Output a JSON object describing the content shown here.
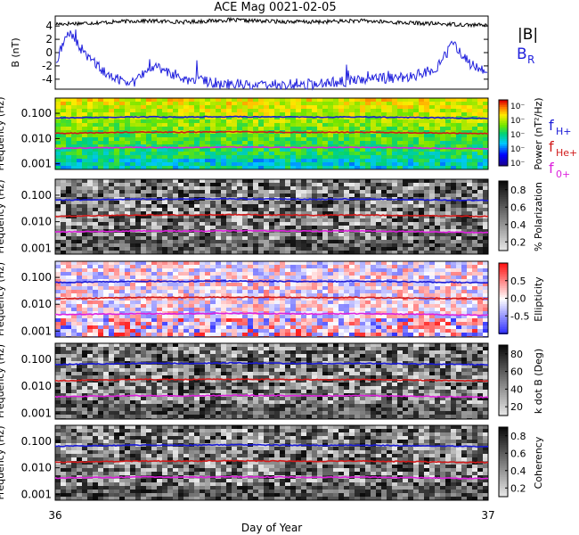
{
  "title": "ACE Mag 0021-02-05",
  "chart_data": [
    {
      "type": "line",
      "ylabel": "B (nT)",
      "ylim": [
        -5.5,
        5.5
      ],
      "yticks": [
        "4",
        "2",
        "0",
        "-2",
        "-4"
      ],
      "yticks_values": [
        4,
        2,
        0,
        -2,
        -4
      ],
      "legend": [
        {
          "label": "|B|",
          "color": "#000000"
        },
        {
          "label": "B",
          "sub": "R",
          "color": "#2222dd"
        }
      ],
      "series": [
        {
          "name": "|B|",
          "color": "#000000",
          "x": [
            36.0,
            36.1,
            36.2,
            36.3,
            36.4,
            36.5,
            36.6,
            36.7,
            36.8,
            36.9,
            37.0
          ],
          "values": [
            4.3,
            4.5,
            4.8,
            4.6,
            4.9,
            4.7,
            4.6,
            4.8,
            4.5,
            4.3,
            4.1
          ]
        },
        {
          "name": "B_R",
          "color": "#2222dd",
          "x": [
            36.0,
            36.03,
            36.08,
            36.13,
            36.18,
            36.23,
            36.3,
            36.38,
            36.45,
            36.52,
            36.6,
            36.68,
            36.75,
            36.82,
            36.88,
            36.92,
            36.96,
            37.0
          ],
          "values": [
            -1.5,
            3.0,
            -1.0,
            -3.8,
            -4.3,
            -2.0,
            -4.0,
            -4.6,
            -4.8,
            -4.8,
            -4.7,
            -4.3,
            -3.9,
            -3.6,
            -2.5,
            1.5,
            -1.8,
            -2.6
          ]
        }
      ]
    },
    {
      "type": "heatmap",
      "ylabel": "Frequency (Hz)",
      "yscale": "log",
      "ylim": [
        0.0006,
        0.4
      ],
      "yticks": [
        "0.100",
        "0.010",
        "0.001"
      ],
      "yticks_values": [
        0.1,
        0.01,
        0.001
      ],
      "colorbar": {
        "label": "Power (nT²/Hz)",
        "ticks": [
          "10⁻",
          "10⁻",
          "10⁻",
          "10⁻",
          "10⁻"
        ],
        "scheme": "rainbow"
      },
      "legend": [
        {
          "label": "f",
          "sub": "H+",
          "color": "#1a1ad6"
        },
        {
          "label": "f",
          "sub": "He+",
          "color": "#d11a1a"
        },
        {
          "label": "f",
          "sub": "0+",
          "color": "#dd22dd"
        }
      ]
    },
    {
      "type": "heatmap",
      "ylabel": "Frequency (Hz)",
      "yscale": "log",
      "ylim": [
        0.0006,
        0.4
      ],
      "yticks": [
        "0.100",
        "0.010",
        "0.001"
      ],
      "yticks_values": [
        0.1,
        0.01,
        0.001
      ],
      "colorbar": {
        "label": "% Polarization",
        "ticks": [
          "0.8",
          "0.6",
          "0.4",
          "0.2"
        ],
        "ticks_values": [
          0.8,
          0.6,
          0.4,
          0.2
        ],
        "range": [
          0.1,
          0.9
        ],
        "scheme": "gray"
      }
    },
    {
      "type": "heatmap",
      "ylabel": "Frequency (Hz)",
      "yscale": "log",
      "ylim": [
        0.0006,
        0.4
      ],
      "yticks": [
        "0.100",
        "0.010",
        "0.001"
      ],
      "yticks_values": [
        0.1,
        0.01,
        0.001
      ],
      "colorbar": {
        "label": "Ellipticity",
        "ticks": [
          "0.5",
          "0.0",
          "-0.5"
        ],
        "ticks_values": [
          0.5,
          0.0,
          -0.5
        ],
        "range": [
          -1.0,
          1.0
        ],
        "scheme": "bluewhitered"
      }
    },
    {
      "type": "heatmap",
      "ylabel": "Frequency (Hz)",
      "yscale": "log",
      "ylim": [
        0.0006,
        0.4
      ],
      "yticks": [
        "0.100",
        "0.010",
        "0.001"
      ],
      "yticks_values": [
        0.1,
        0.01,
        0.001
      ],
      "colorbar": {
        "label": "k dot B (Deg)",
        "ticks": [
          "80",
          "60",
          "40",
          "20"
        ],
        "ticks_values": [
          80,
          60,
          40,
          20
        ],
        "range": [
          10,
          90
        ],
        "scheme": "gray"
      }
    },
    {
      "type": "heatmap",
      "ylabel": "Frequency (Hz)",
      "yscale": "log",
      "ylim": [
        0.0006,
        0.4
      ],
      "yticks": [
        "0.100",
        "0.010",
        "0.001"
      ],
      "yticks_values": [
        0.1,
        0.01,
        0.001
      ],
      "colorbar": {
        "label": "Coherency",
        "ticks": [
          "0.8",
          "0.6",
          "0.4",
          "0.2"
        ],
        "ticks_values": [
          0.8,
          0.6,
          0.4,
          0.2
        ],
        "range": [
          0.1,
          0.9
        ],
        "scheme": "gray"
      }
    }
  ],
  "gyro_lines": {
    "x": [
      36.0,
      36.1,
      36.2,
      36.3,
      36.4,
      36.5,
      36.6,
      36.7,
      36.8,
      36.9,
      37.0
    ],
    "f_H+": [
      0.065,
      0.068,
      0.072,
      0.071,
      0.074,
      0.072,
      0.07,
      0.072,
      0.069,
      0.066,
      0.063
    ],
    "f_He+": [
      0.016,
      0.017,
      0.018,
      0.0178,
      0.0185,
      0.018,
      0.0175,
      0.018,
      0.0172,
      0.0165,
      0.0158
    ],
    "f_0+": [
      0.0041,
      0.0043,
      0.0045,
      0.0044,
      0.0046,
      0.0045,
      0.0044,
      0.0045,
      0.0043,
      0.0041,
      0.0039
    ]
  },
  "x_axis": {
    "label": "Day of Year",
    "ticks": [
      "36",
      "37"
    ],
    "ticks_values": [
      36,
      37
    ],
    "range": [
      36,
      37
    ]
  }
}
